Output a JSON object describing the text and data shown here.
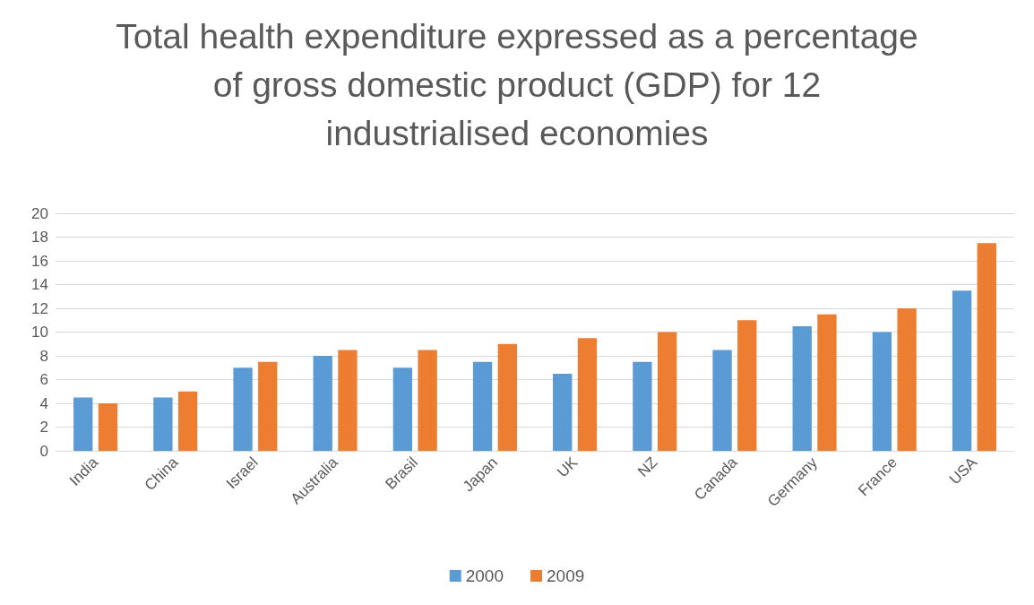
{
  "chart_data": {
    "type": "bar",
    "title": "Total health expenditure expressed as a percentage of gross domestic product (GDP) for 12 industrialised economies",
    "categories": [
      "India",
      "China",
      "Israel",
      "Australia",
      "Brasil",
      "Japan",
      "UK",
      "NZ",
      "Canada",
      "Germany",
      "France",
      "USA"
    ],
    "series": [
      {
        "name": "2000",
        "color": "#5b9bd5",
        "values": [
          4.5,
          4.5,
          7,
          8,
          7,
          7.5,
          6.5,
          7.5,
          8.5,
          10.5,
          10,
          13.5
        ]
      },
      {
        "name": "2009",
        "color": "#ed7d31",
        "values": [
          4,
          5,
          7.5,
          8.5,
          8.5,
          9,
          9.5,
          10,
          11,
          11.5,
          12,
          17.5
        ]
      }
    ],
    "ylim": [
      0,
      20
    ],
    "yticks": [
      0,
      2,
      4,
      6,
      8,
      10,
      12,
      14,
      16,
      18,
      20
    ],
    "grid": "y",
    "legend": "bottom"
  }
}
